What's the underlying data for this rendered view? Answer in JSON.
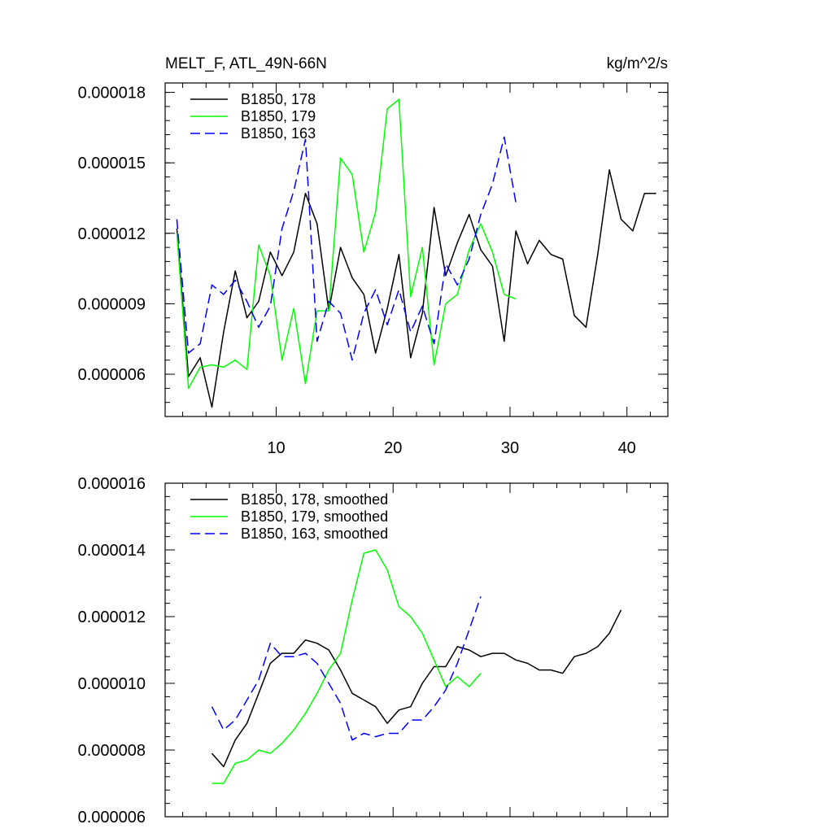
{
  "chart_data": [
    {
      "type": "line",
      "title": "MELT_F, ATL_49N-66N",
      "units": "kg/m^2/s",
      "xlim": [
        0.5,
        43.5
      ],
      "ylim": [
        4.2e-06,
        1.84e-05
      ],
      "yticks": [
        6e-06,
        9e-06,
        1.2e-05,
        1.5e-05,
        1.8e-05
      ],
      "ytick_labels": [
        "0.000006",
        "0.000009",
        "0.000012",
        "0.000015",
        "0.000018"
      ],
      "xticks": [
        10,
        20,
        30,
        40
      ],
      "xtick_labels": [
        "10",
        "20",
        "30",
        "40"
      ],
      "legend_position": "top-left",
      "series": [
        {
          "name": "B1850, 178",
          "color": "#000000",
          "dash": "solid",
          "x": [
            1.5,
            2.5,
            3.5,
            4.5,
            5.5,
            6.5,
            7.5,
            8.5,
            9.5,
            10.5,
            11.5,
            12.5,
            13.5,
            14.5,
            15.5,
            16.5,
            17.5,
            18.5,
            19.5,
            20.5,
            21.5,
            22.5,
            23.5,
            24.5,
            25.5,
            26.5,
            27.5,
            28.5,
            29.5,
            30.5,
            31.5,
            32.5,
            33.5,
            34.5,
            35.5,
            36.5,
            37.5,
            38.5,
            39.5,
            40.5,
            41.5,
            42.5
          ],
          "values": [
            1.22e-05,
            5.9e-06,
            6.7e-06,
            4.6e-06,
            7.8e-06,
            1.04e-05,
            8.4e-06,
            9.1e-06,
            1.12e-05,
            1.02e-05,
            1.12e-05,
            1.37e-05,
            1.24e-05,
            8.7e-06,
            1.14e-05,
            1.01e-05,
            9.4e-06,
            6.9e-06,
            8.8e-06,
            1.11e-05,
            6.7e-06,
            8.6e-06,
            1.31e-05,
            1.02e-05,
            1.16e-05,
            1.28e-05,
            1.13e-05,
            1.06e-05,
            7.4e-06,
            1.21e-05,
            1.07e-05,
            1.17e-05,
            1.11e-05,
            1.09e-05,
            8.5e-06,
            8e-06,
            1.11e-05,
            1.47e-05,
            1.26e-05,
            1.21e-05,
            1.37e-05,
            1.37e-05
          ]
        },
        {
          "name": "B1850, 179",
          "color": "#00ff00",
          "dash": "solid",
          "x": [
            1.5,
            2.5,
            3.5,
            4.5,
            5.5,
            6.5,
            7.5,
            8.5,
            9.5,
            10.5,
            11.5,
            12.5,
            13.5,
            14.5,
            15.5,
            16.5,
            17.5,
            18.5,
            19.5,
            20.5,
            21.5,
            22.5,
            23.5,
            24.5,
            25.5,
            26.5,
            27.5,
            28.5,
            29.5,
            30.5
          ],
          "values": [
            1.2e-05,
            5.4e-06,
            6.3e-06,
            6.4e-06,
            6.3e-06,
            6.6e-06,
            6.2e-06,
            1.15e-05,
            1.02e-05,
            6.6e-06,
            8.8e-06,
            5.6e-06,
            8.7e-06,
            8.7e-06,
            1.52e-05,
            1.45e-05,
            1.12e-05,
            1.29e-05,
            1.73e-05,
            1.77e-05,
            9.3e-06,
            1.14e-05,
            6.4e-06,
            9e-06,
            9.4e-06,
            1.13e-05,
            1.24e-05,
            1.12e-05,
            9.4e-06,
            9.2e-06
          ]
        },
        {
          "name": "B1850, 163",
          "color": "#0000ff",
          "dash": "dashed",
          "x": [
            1.5,
            2.5,
            3.5,
            4.5,
            5.5,
            6.5,
            7.5,
            8.5,
            9.5,
            10.5,
            11.5,
            12.5,
            13.5,
            14.5,
            15.5,
            16.5,
            17.5,
            18.5,
            19.5,
            20.5,
            21.5,
            22.5,
            23.5,
            24.5,
            25.5,
            26.5,
            27.5,
            28.5,
            29.5,
            30.5
          ],
          "values": [
            1.26e-05,
            6.9e-06,
            7.3e-06,
            9.8e-06,
            9.4e-06,
            1e-05,
            9.1e-06,
            8e-06,
            8.9e-06,
            1.22e-05,
            1.38e-05,
            1.6e-05,
            7.4e-06,
            9.1e-06,
            8.6e-06,
            6.6e-06,
            8.6e-06,
            9.6e-06,
            8.1e-06,
            9.6e-06,
            7.8e-06,
            8.9e-06,
            7.3e-06,
            1.07e-05,
            9.8e-06,
            1.09e-05,
            1.28e-05,
            1.41e-05,
            1.61e-05,
            1.33e-05
          ]
        }
      ]
    },
    {
      "type": "line",
      "xlim": [
        0.5,
        43.5
      ],
      "ylim": [
        6e-06,
        1.6e-05
      ],
      "yticks": [
        6e-06,
        8e-06,
        1e-05,
        1.2e-05,
        1.4e-05,
        1.6e-05
      ],
      "ytick_labels": [
        "0.000006",
        "0.000008",
        "0.000010",
        "0.000012",
        "0.000014",
        "0.000016"
      ],
      "xticks": [
        10,
        20,
        30,
        40
      ],
      "legend_position": "top-left",
      "series": [
        {
          "name": "B1850, 178, smoothed",
          "color": "#000000",
          "dash": "solid",
          "x": [
            4.5,
            5.5,
            6.5,
            7.5,
            8.5,
            9.5,
            10.5,
            11.5,
            12.5,
            13.5,
            14.5,
            15.5,
            16.5,
            17.5,
            18.5,
            19.5,
            20.5,
            21.5,
            22.5,
            23.5,
            24.5,
            25.5,
            26.5,
            27.5,
            28.5,
            29.5,
            30.5,
            31.5,
            32.5,
            33.5,
            34.5,
            35.5,
            36.5,
            37.5,
            38.5,
            39.5
          ],
          "values": [
            7.9e-06,
            7.5e-06,
            8.3e-06,
            8.8e-06,
            9.7e-06,
            1.06e-05,
            1.09e-05,
            1.09e-05,
            1.13e-05,
            1.12e-05,
            1.1e-05,
            1.04e-05,
            9.7e-06,
            9.5e-06,
            9.3e-06,
            8.8e-06,
            9.2e-06,
            9.3e-06,
            1e-05,
            1.05e-05,
            1.05e-05,
            1.11e-05,
            1.1e-05,
            1.08e-05,
            1.09e-05,
            1.09e-05,
            1.07e-05,
            1.06e-05,
            1.04e-05,
            1.04e-05,
            1.03e-05,
            1.08e-05,
            1.09e-05,
            1.11e-05,
            1.15e-05,
            1.22e-05
          ]
        },
        {
          "name": "B1850, 179, smoothed",
          "color": "#00ff00",
          "dash": "solid",
          "x": [
            4.5,
            5.5,
            6.5,
            7.5,
            8.5,
            9.5,
            10.5,
            11.5,
            12.5,
            13.5,
            14.5,
            15.5,
            16.5,
            17.5,
            18.5,
            19.5,
            20.5,
            21.5,
            22.5,
            23.5,
            24.5,
            25.5,
            26.5,
            27.5
          ],
          "values": [
            7e-06,
            7e-06,
            7.6e-06,
            7.7e-06,
            8e-06,
            7.9e-06,
            8.2e-06,
            8.6e-06,
            9.1e-06,
            9.7e-06,
            1.04e-05,
            1.09e-05,
            1.25e-05,
            1.39e-05,
            1.4e-05,
            1.34e-05,
            1.23e-05,
            1.2e-05,
            1.15e-05,
            1.07e-05,
            9.9e-06,
            1.02e-05,
            9.9e-06,
            1.03e-05
          ]
        },
        {
          "name": "B1850, 163, smoothed",
          "color": "#0000ff",
          "dash": "dashed",
          "x": [
            4.5,
            5.5,
            6.5,
            7.5,
            8.5,
            9.5,
            10.5,
            11.5,
            12.5,
            13.5,
            14.5,
            15.5,
            16.5,
            17.5,
            18.5,
            19.5,
            20.5,
            21.5,
            22.5,
            23.5,
            24.5,
            25.5,
            26.5,
            27.5
          ],
          "values": [
            9.3e-06,
            8.6e-06,
            8.9e-06,
            9.5e-06,
            1.01e-05,
            1.12e-05,
            1.08e-05,
            1.08e-05,
            1.09e-05,
            1.06e-05,
            1e-05,
            9.4e-06,
            8.3e-06,
            8.5e-06,
            8.4e-06,
            8.5e-06,
            8.5e-06,
            8.9e-06,
            8.9e-06,
            9.3e-06,
            9.8e-06,
            1.06e-05,
            1.16e-05,
            1.26e-05
          ]
        }
      ]
    }
  ]
}
